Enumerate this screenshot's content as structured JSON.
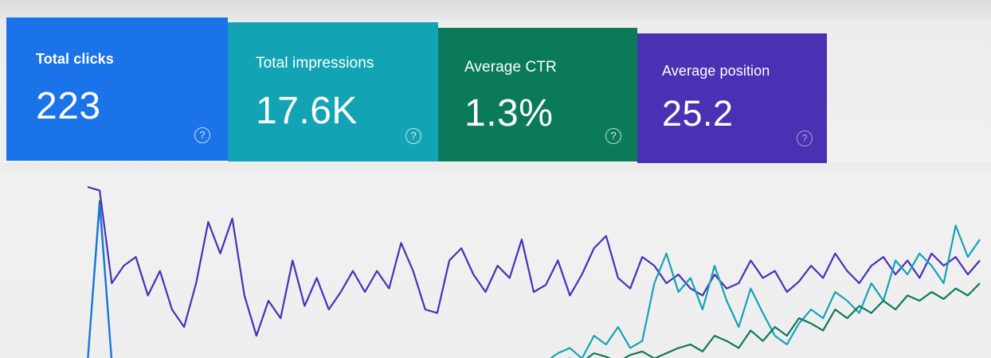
{
  "metrics": [
    {
      "id": "clicks",
      "label": "Total clicks",
      "value": "223",
      "help": "?",
      "color": "#1a73e8"
    },
    {
      "id": "impressions",
      "label": "Total impressions",
      "value": "17.6K",
      "help": "?",
      "color": "#12a4b4"
    },
    {
      "id": "ctr",
      "label": "Average CTR",
      "value": "1.3%",
      "help": "?",
      "color": "#0b7a59"
    },
    {
      "id": "position",
      "label": "Average position",
      "value": "25.2",
      "help": "?",
      "color": "#4a30b3"
    }
  ],
  "chart_data": {
    "type": "line",
    "title": "",
    "xlabel": "",
    "ylabel": "",
    "grid": false,
    "ylim": [
      0,
      100
    ],
    "series": [
      {
        "color": "#4a30b3",
        "values": [
          100,
          98,
          45,
          55,
          60,
          38,
          52,
          30,
          20,
          45,
          80,
          62,
          82,
          38,
          15,
          35,
          25,
          58,
          32,
          48,
          30,
          40,
          52,
          40,
          52,
          42,
          68,
          52,
          30,
          28,
          58,
          65,
          50,
          40,
          55,
          48,
          70,
          40,
          44,
          58,
          38,
          50,
          65,
          72,
          48,
          42,
          60,
          55,
          45,
          50,
          42,
          38,
          50,
          42,
          45,
          58,
          48,
          52,
          40,
          46,
          55,
          48,
          62,
          52,
          45,
          55,
          60,
          50,
          58,
          48,
          62,
          55,
          60,
          50,
          58
        ]
      },
      {
        "color": "#12a4b4",
        "values": [
          0,
          0,
          0,
          0,
          0,
          0,
          0,
          0,
          0,
          0,
          0,
          0,
          0,
          0,
          0,
          0,
          0,
          0,
          0,
          0,
          0,
          0,
          0,
          0,
          0,
          0,
          0,
          0,
          0,
          0,
          0,
          0,
          0,
          0,
          0,
          0,
          0,
          0,
          0,
          5,
          8,
          2,
          15,
          10,
          20,
          8,
          12,
          45,
          62,
          40,
          48,
          30,
          55,
          35,
          20,
          42,
          28,
          15,
          10,
          22,
          30,
          25,
          40,
          35,
          28,
          45,
          35,
          58,
          50,
          62,
          55,
          45,
          78,
          60,
          70
        ]
      },
      {
        "color": "#0b7a59",
        "values": [
          0,
          92,
          0,
          0,
          0,
          0,
          0,
          0,
          0,
          0,
          0,
          0,
          0,
          0,
          0,
          0,
          0,
          0,
          0,
          0,
          0,
          0,
          0,
          0,
          0,
          0,
          0,
          0,
          0,
          0,
          0,
          0,
          0,
          0,
          0,
          0,
          0,
          0,
          0,
          0,
          2,
          0,
          5,
          3,
          0,
          4,
          6,
          2,
          5,
          8,
          10,
          6,
          15,
          12,
          8,
          18,
          12,
          20,
          15,
          25,
          22,
          18,
          30,
          25,
          32,
          28,
          35,
          30,
          38,
          35,
          40,
          36,
          42,
          38,
          45
        ]
      },
      {
        "color": "#1a73e8",
        "values": [
          0,
          90,
          0,
          0,
          0,
          0,
          0,
          0,
          0,
          0,
          0,
          0,
          0,
          0,
          0,
          0,
          0,
          0,
          0,
          0,
          0,
          0,
          0,
          0,
          0,
          0,
          0,
          0,
          0,
          0,
          0,
          0,
          0,
          0,
          0,
          0,
          0,
          0,
          0,
          0,
          0,
          0,
          0,
          0,
          0,
          0,
          0,
          0,
          0,
          0,
          0,
          0,
          0,
          0,
          0,
          0,
          0,
          0,
          0,
          0,
          0,
          0,
          0,
          0,
          0,
          0,
          0,
          0,
          0,
          0,
          0,
          0,
          0,
          0,
          0
        ]
      }
    ]
  }
}
